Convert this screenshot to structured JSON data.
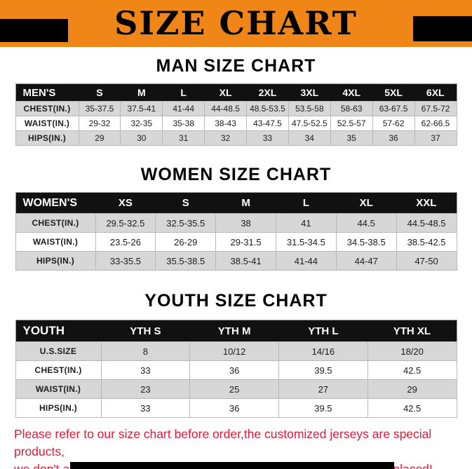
{
  "banner": {
    "title": "SIZE CHART"
  },
  "sections": [
    {
      "heading": "MAN SIZE CHART",
      "table": {
        "header": [
          "MEN'S",
          "S",
          "M",
          "L",
          "XL",
          "2XL",
          "3XL",
          "4XL",
          "5XL",
          "6XL"
        ],
        "rows": [
          [
            "CHEST(IN.)",
            "35-37.5",
            "37.5-41",
            "41-44",
            "44-48.5",
            "48.5-53.5",
            "53.5-58",
            "58-63",
            "63-67.5",
            "67.5-72"
          ],
          [
            "WAIST(IN.)",
            "29-32",
            "32-35",
            "35-38",
            "38-43",
            "43-47.5",
            "47.5-52.5",
            "52.5-57",
            "57-62",
            "62-66.5"
          ],
          [
            "HIPS(IN.)",
            "29",
            "30",
            "31",
            "32",
            "33",
            "34",
            "35",
            "36",
            "37"
          ]
        ]
      }
    },
    {
      "heading": "WOMEN SIZE CHART",
      "table": {
        "header": [
          "WOMEN'S",
          "XS",
          "S",
          "M",
          "L",
          "XL",
          "XXL"
        ],
        "rows": [
          [
            "CHEST(IN.)",
            "29.5-32.5",
            "32.5-35.5",
            "38",
            "41",
            "44.5",
            "44.5-48.5"
          ],
          [
            "WAIST(IN.)",
            "23.5-26",
            "26-29",
            "29-31.5",
            "31.5-34.5",
            "34.5-38.5",
            "38.5-42.5"
          ],
          [
            "HIPS(IN.)",
            "33-35.5",
            "35.5-38.5",
            "38.5-41",
            "41-44",
            "44-47",
            "47-50"
          ]
        ]
      }
    },
    {
      "heading": "YOUTH SIZE CHART",
      "table": {
        "header": [
          "YOUTH",
          "YTH S",
          "YTH M",
          "YTH L",
          "YTH XL"
        ],
        "rows": [
          [
            "U.S.SIZE",
            "8",
            "10/12",
            "14/16",
            "18/20"
          ],
          [
            "CHEST(IN.)",
            "33",
            "36",
            "39.5",
            "42.5"
          ],
          [
            "WAIST(IN.)",
            "23",
            "25",
            "27",
            "29"
          ],
          [
            "HIPS(IN.)",
            "33",
            "36",
            "39.5",
            "42.5"
          ]
        ]
      }
    }
  ],
  "footer": {
    "line1": "Please refer to our size chart before order,the customized jerseys are special products,",
    "line2": "we don't accept cancel, change, teturn or refund after order has been placed!"
  },
  "colors": {
    "banner_bg": "#f08617",
    "header_row_bg": "#111111",
    "row_alt_bg": "#d7d7d7",
    "footer_red": "#e51937",
    "block_black": "#000000"
  }
}
